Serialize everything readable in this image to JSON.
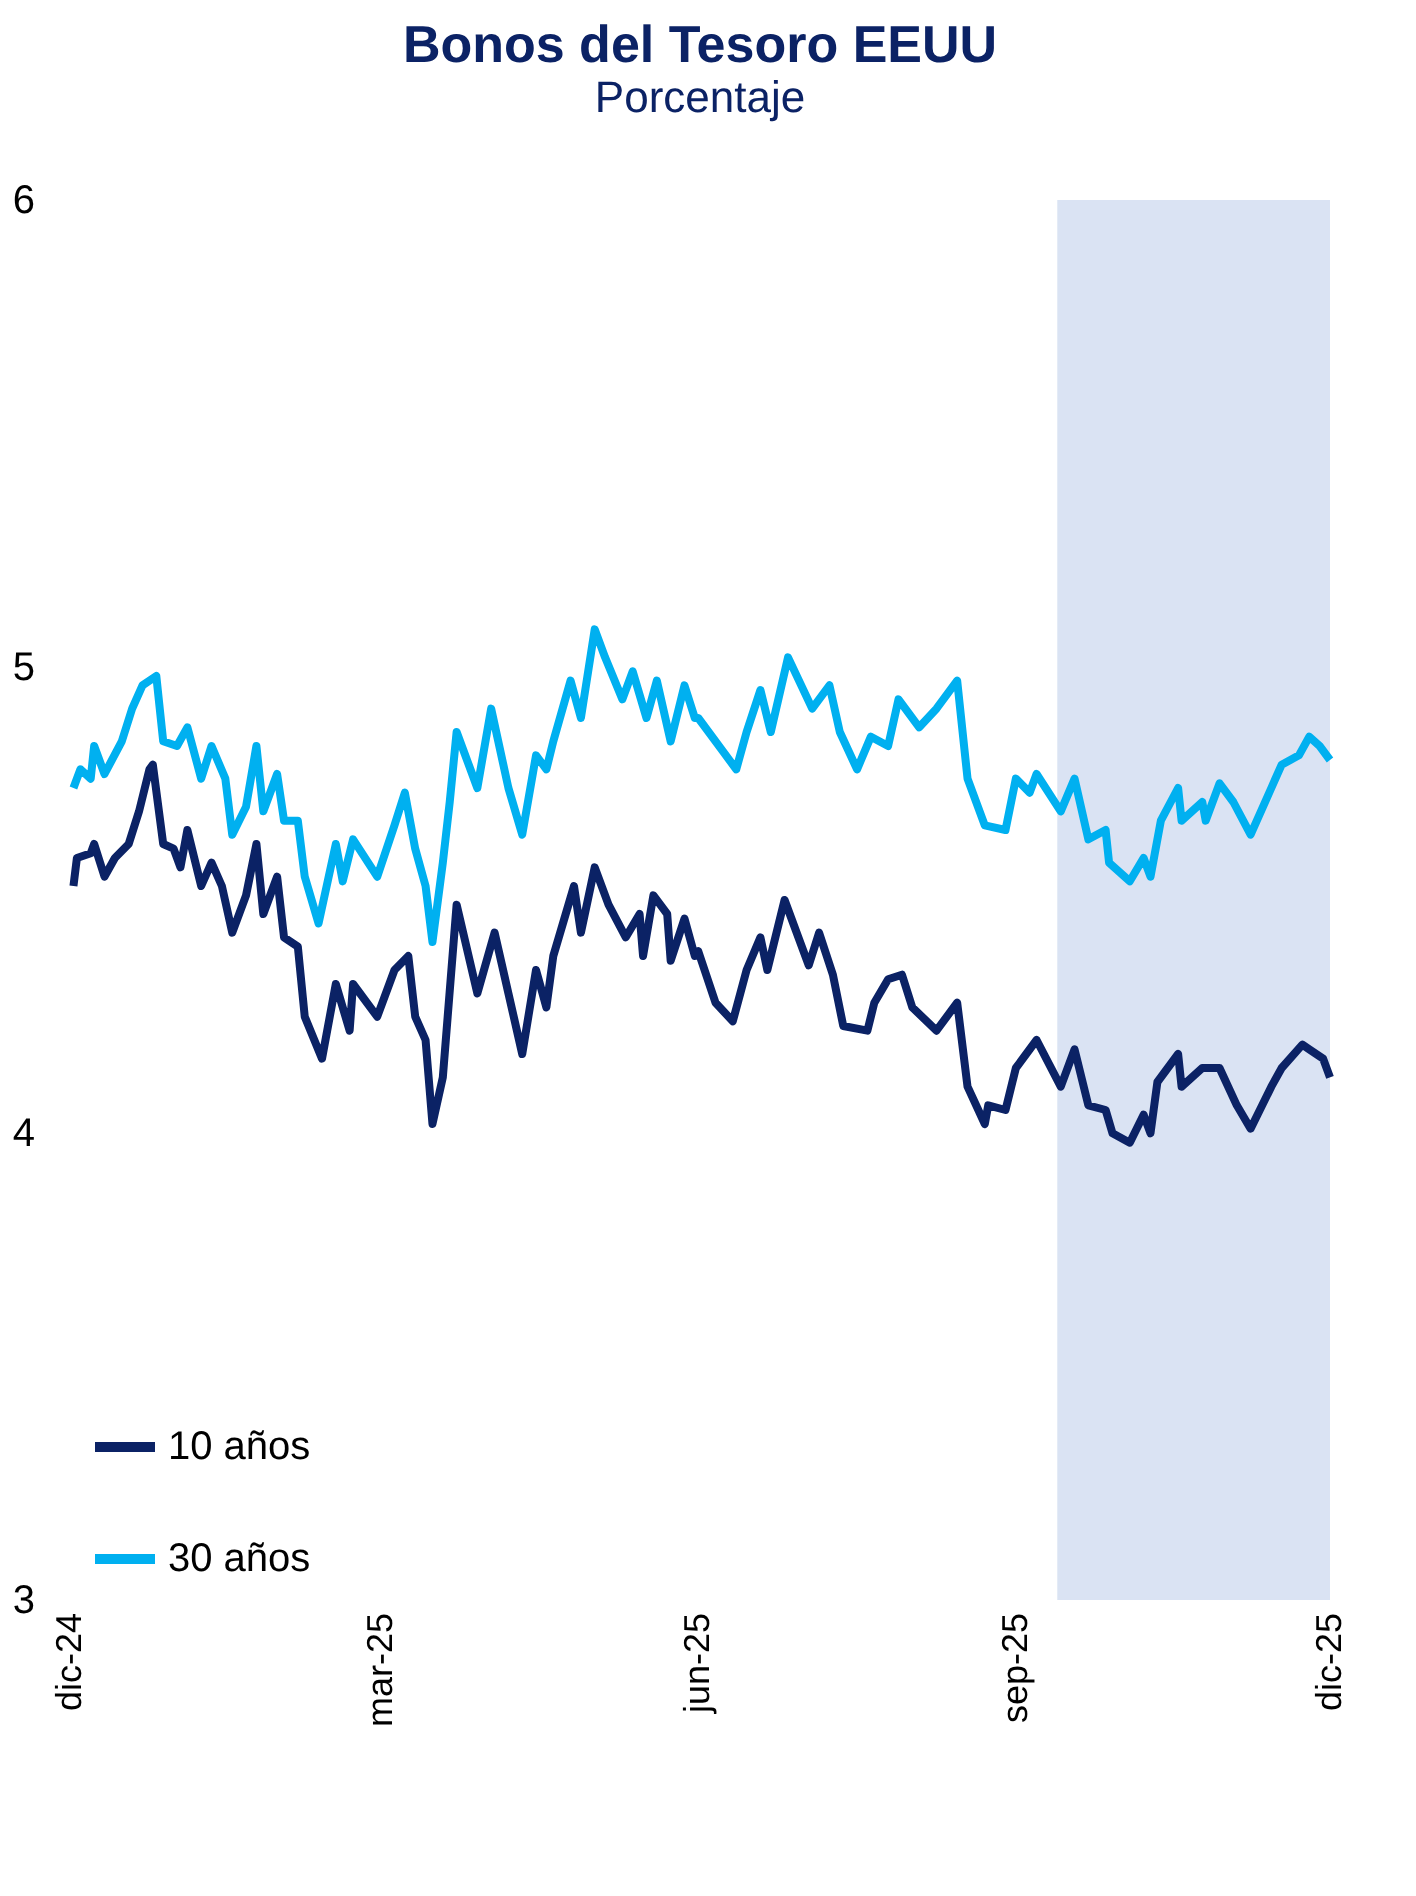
{
  "chart_data": {
    "type": "line",
    "title": "Bonos del Tesoro EEUU",
    "subtitle": "Porcentaje",
    "xlim": [
      "2024-12-01",
      "2025-12-01"
    ],
    "xticks": [
      {
        "value": "2024-12-01",
        "label": "dic-24"
      },
      {
        "value": "2025-03-01",
        "label": "mar-25"
      },
      {
        "value": "2025-06-01",
        "label": "jun-25"
      },
      {
        "value": "2025-09-01",
        "label": "sep-25"
      },
      {
        "value": "2025-12-01",
        "label": "dic-25"
      }
    ],
    "ylim": [
      3,
      6
    ],
    "yticks": [
      3,
      4,
      5,
      6
    ],
    "grid": false,
    "legend": "bottom left",
    "line_style": "solid",
    "marker": "none",
    "bands": [
      {
        "axis": "x",
        "from": "2025-09-13",
        "to": "2025-12-01",
        "color": "#dae3f3"
      }
    ],
    "series": [
      {
        "name": "10 años",
        "color": "#0b2265",
        "x": [
          "2024-12-02",
          "2024-12-03",
          "2024-12-07",
          "2024-12-08",
          "2024-12-11",
          "2024-12-14",
          "2024-12-18",
          "2024-12-21",
          "2024-12-24",
          "2024-12-25",
          "2024-12-28",
          "2024-12-31",
          "2025-01-02",
          "2025-01-04",
          "2025-01-08",
          "2025-01-11",
          "2025-01-14",
          "2025-01-17",
          "2025-01-21",
          "2025-01-24",
          "2025-01-26",
          "2025-01-30",
          "2025-02-01",
          "2025-02-05",
          "2025-02-07",
          "2025-02-12",
          "2025-02-16",
          "2025-02-20",
          "2025-02-21",
          "2025-02-28",
          "2025-03-05",
          "2025-03-09",
          "2025-03-11",
          "2025-03-14",
          "2025-03-16",
          "2025-03-19",
          "2025-03-23",
          "2025-03-29",
          "2025-04-03",
          "2025-04-07",
          "2025-04-11",
          "2025-04-15",
          "2025-04-18",
          "2025-04-20",
          "2025-04-26",
          "2025-04-28",
          "2025-05-02",
          "2025-05-06",
          "2025-05-11",
          "2025-05-15",
          "2025-05-16",
          "2025-05-19",
          "2025-05-23",
          "2025-05-24",
          "2025-05-28",
          "2025-05-31",
          "2025-06-01",
          "2025-06-06",
          "2025-06-11",
          "2025-06-15",
          "2025-06-19",
          "2025-06-21",
          "2025-06-26",
          "2025-07-03",
          "2025-07-06",
          "2025-07-10",
          "2025-07-13",
          "2025-07-20",
          "2025-07-22",
          "2025-07-26",
          "2025-07-30",
          "2025-08-02",
          "2025-08-09",
          "2025-08-15",
          "2025-08-18",
          "2025-08-23",
          "2025-08-24",
          "2025-08-29",
          "2025-09-01",
          "2025-09-07",
          "2025-09-14",
          "2025-09-18",
          "2025-09-22",
          "2025-09-27",
          "2025-09-29",
          "2025-10-04",
          "2025-10-08",
          "2025-10-10",
          "2025-10-12",
          "2025-10-18",
          "2025-10-19",
          "2025-10-25",
          "2025-10-30",
          "2025-11-04",
          "2025-11-08",
          "2025-11-14",
          "2025-11-17",
          "2025-11-23",
          "2025-11-25",
          "2025-11-29",
          "2025-12-01"
        ],
        "values": [
          4.53,
          4.59,
          4.6,
          4.62,
          4.55,
          4.59,
          4.62,
          4.69,
          4.78,
          4.79,
          4.62,
          4.61,
          4.57,
          4.65,
          4.53,
          4.58,
          4.53,
          4.43,
          4.51,
          4.62,
          4.47,
          4.55,
          4.42,
          4.4,
          4.25,
          4.16,
          4.32,
          4.22,
          4.32,
          4.25,
          4.35,
          4.38,
          4.25,
          4.2,
          4.02,
          4.12,
          4.49,
          4.3,
          4.43,
          4.3,
          4.17,
          4.35,
          4.27,
          4.38,
          4.53,
          4.43,
          4.57,
          4.49,
          4.42,
          4.47,
          4.38,
          4.51,
          4.47,
          4.37,
          4.46,
          4.38,
          4.39,
          4.28,
          4.24,
          4.35,
          4.42,
          4.35,
          4.5,
          4.36,
          4.43,
          4.34,
          4.23,
          4.22,
          4.28,
          4.33,
          4.34,
          4.27,
          4.22,
          4.28,
          4.1,
          4.02,
          4.06,
          4.05,
          4.14,
          4.2,
          4.1,
          4.18,
          4.06,
          4.05,
          4.0,
          3.98,
          4.04,
          4.0,
          4.11,
          4.17,
          4.1,
          4.14,
          4.14,
          4.06,
          4.01,
          4.1,
          4.14,
          4.19,
          4.18,
          4.16,
          4.12
        ]
      },
      {
        "name": "30 años",
        "color": "#00b0f0",
        "x": [
          "2024-12-02",
          "2024-12-04",
          "2024-12-07",
          "2024-12-08",
          "2024-12-11",
          "2024-12-16",
          "2024-12-19",
          "2024-12-22",
          "2024-12-26",
          "2024-12-28",
          "2025-01-01",
          "2025-01-04",
          "2025-01-08",
          "2025-01-11",
          "2025-01-15",
          "2025-01-17",
          "2025-01-21",
          "2025-01-24",
          "2025-01-26",
          "2025-01-30",
          "2025-02-01",
          "2025-02-05",
          "2025-02-07",
          "2025-02-11",
          "2025-02-16",
          "2025-02-18",
          "2025-02-21",
          "2025-02-28",
          "2025-03-05",
          "2025-03-08",
          "2025-03-11",
          "2025-03-14",
          "2025-03-16",
          "2025-03-19",
          "2025-03-21",
          "2025-03-23",
          "2025-03-29",
          "2025-04-02",
          "2025-04-07",
          "2025-04-11",
          "2025-04-15",
          "2025-04-18",
          "2025-04-20",
          "2025-04-25",
          "2025-04-28",
          "2025-05-02",
          "2025-05-05",
          "2025-05-10",
          "2025-05-13",
          "2025-05-17",
          "2025-05-20",
          "2025-05-24",
          "2025-05-28",
          "2025-05-31",
          "2025-06-01",
          "2025-06-08",
          "2025-06-12",
          "2025-06-15",
          "2025-06-19",
          "2025-06-22",
          "2025-06-27",
          "2025-07-04",
          "2025-07-09",
          "2025-07-12",
          "2025-07-17",
          "2025-07-21",
          "2025-07-26",
          "2025-07-29",
          "2025-08-04",
          "2025-08-09",
          "2025-08-15",
          "2025-08-18",
          "2025-08-23",
          "2025-08-29",
          "2025-09-01",
          "2025-09-05",
          "2025-09-07",
          "2025-09-14",
          "2025-09-18",
          "2025-09-22",
          "2025-09-27",
          "2025-09-28",
          "2025-10-04",
          "2025-10-08",
          "2025-10-10",
          "2025-10-13",
          "2025-10-18",
          "2025-10-19",
          "2025-10-25",
          "2025-10-26",
          "2025-10-30",
          "2025-11-03",
          "2025-11-08",
          "2025-11-14",
          "2025-11-17",
          "2025-11-22",
          "2025-11-25",
          "2025-11-28",
          "2025-12-01"
        ],
        "values": [
          4.74,
          4.78,
          4.76,
          4.83,
          4.77,
          4.84,
          4.91,
          4.96,
          4.98,
          4.84,
          4.83,
          4.87,
          4.76,
          4.83,
          4.76,
          4.64,
          4.7,
          4.83,
          4.69,
          4.77,
          4.67,
          4.67,
          4.55,
          4.45,
          4.62,
          4.54,
          4.63,
          4.55,
          4.66,
          4.73,
          4.61,
          4.53,
          4.41,
          4.58,
          4.71,
          4.86,
          4.74,
          4.91,
          4.74,
          4.64,
          4.81,
          4.78,
          4.84,
          4.97,
          4.89,
          5.08,
          5.02,
          4.93,
          4.99,
          4.89,
          4.97,
          4.84,
          4.96,
          4.89,
          4.89,
          4.82,
          4.78,
          4.86,
          4.95,
          4.86,
          5.02,
          4.91,
          4.96,
          4.86,
          4.78,
          4.85,
          4.83,
          4.93,
          4.87,
          4.91,
          4.97,
          4.76,
          4.66,
          4.65,
          4.76,
          4.73,
          4.77,
          4.69,
          4.76,
          4.63,
          4.65,
          4.58,
          4.54,
          4.59,
          4.55,
          4.67,
          4.74,
          4.67,
          4.71,
          4.67,
          4.75,
          4.71,
          4.64,
          4.74,
          4.79,
          4.81,
          4.85,
          4.83,
          4.8
        ]
      }
    ]
  }
}
